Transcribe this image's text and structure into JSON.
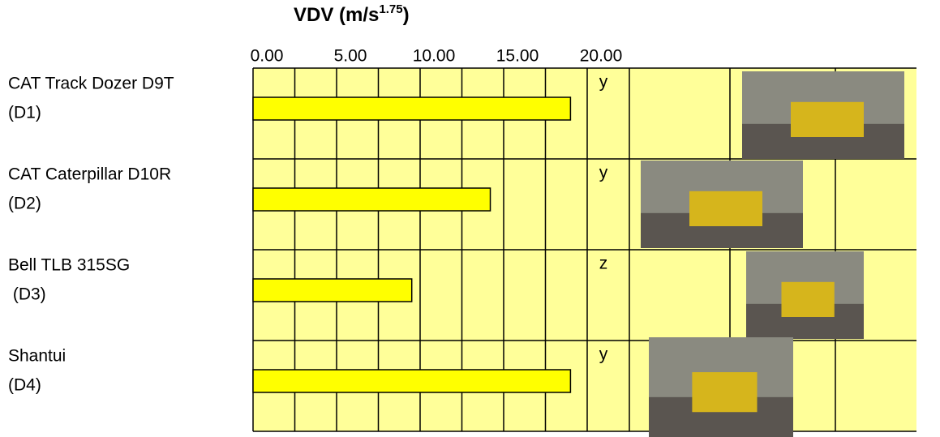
{
  "chart_data": {
    "type": "bar",
    "orientation": "horizontal",
    "title": "VDV (m/s",
    "title_superscript": "1.75",
    "title_end": ")",
    "categories": [
      "CAT Track Dozer D9T",
      "CAT Caterpillar D10R",
      "Bell TLB 315SG",
      "Shantui"
    ],
    "category_codes": [
      "(D1)",
      "(D2)",
      " (D3)",
      "(D4)"
    ],
    "axes": [
      "y",
      "y",
      "z",
      "y"
    ],
    "values": [
      19.0,
      14.2,
      9.5,
      19.0
    ],
    "color": "#ffff00",
    "xlim": [
      0,
      20
    ],
    "xticks": [
      {
        "value": 0,
        "label": "0.00"
      },
      {
        "value": 5,
        "label": "5.00"
      },
      {
        "value": 10,
        "label": "10.00"
      },
      {
        "value": 15,
        "label": "15.00"
      },
      {
        "value": 20,
        "label": "20.00"
      }
    ],
    "grid": true
  }
}
